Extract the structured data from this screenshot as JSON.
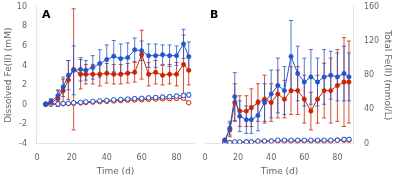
{
  "chart_data": [
    {
      "type": "line",
      "annotations": [
        "A"
      ],
      "xlabel": "Time (d)",
      "ylabel": "Dissolved Fe(II) (mM)",
      "xlim": [
        0,
        90
      ],
      "xticks": [
        0,
        20,
        40,
        60,
        80
      ],
      "ylim": [
        -4,
        10
      ],
      "yticks": [
        -4,
        -2,
        0,
        2,
        4,
        6,
        8,
        10
      ],
      "grid": false,
      "x": [
        5,
        8,
        12,
        15,
        18,
        21,
        25,
        28,
        32,
        36,
        40,
        44,
        48,
        52,
        56,
        60,
        64,
        68,
        72,
        76,
        80,
        84,
        87
      ],
      "series": [
        {
          "color": "#2255cc",
          "marker": "circle",
          "values": [
            0.05,
            0.3,
            0.9,
            1.8,
            3.0,
            3.5,
            3.6,
            3.5,
            3.8,
            4.2,
            4.6,
            4.95,
            4.7,
            4.8,
            5.6,
            5.5,
            5.0,
            5.0,
            5.1,
            5.0,
            5.0,
            6.2,
            4.9
          ],
          "errors": [
            0.05,
            0.3,
            0.6,
            1.0,
            1.5,
            2.5,
            1.2,
            1.0,
            1.2,
            1.4,
            1.5,
            1.6,
            1.5,
            1.5,
            1.2,
            1.0,
            1.2,
            1.2,
            1.0,
            1.1,
            1.0,
            1.5,
            1.5
          ]
        },
        {
          "color": "#cc2200",
          "marker": "circle",
          "values": [
            0.05,
            0.2,
            0.6,
            1.4,
            2.5,
            3.6,
            3.1,
            3.1,
            3.1,
            3.1,
            3.2,
            3.1,
            3.1,
            3.2,
            3.3,
            5.1,
            3.1,
            3.3,
            3.0,
            3.1,
            3.1,
            4.1,
            3.5
          ],
          "errors": [
            0.1,
            0.3,
            0.8,
            1.2,
            2.0,
            6.2,
            1.5,
            1.0,
            1.0,
            1.2,
            1.0,
            1.0,
            1.0,
            1.0,
            1.0,
            2.5,
            1.2,
            1.2,
            1.0,
            1.0,
            1.2,
            3.0,
            1.5
          ]
        },
        {
          "color": "#2255cc",
          "marker": "circle_open",
          "values": [
            0.02,
            0.04,
            0.06,
            0.1,
            0.12,
            0.18,
            0.22,
            0.28,
            0.33,
            0.38,
            0.42,
            0.48,
            0.52,
            0.56,
            0.6,
            0.64,
            0.68,
            0.72,
            0.76,
            0.8,
            0.86,
            0.92,
            0.98
          ],
          "errors": [
            0.01,
            0.02,
            0.03,
            0.04,
            0.05,
            0.06,
            0.08,
            0.09,
            0.1,
            0.12,
            0.13,
            0.14,
            0.15,
            0.16,
            0.17,
            0.18,
            0.18,
            0.19,
            0.19,
            0.2,
            0.2,
            0.22,
            0.22
          ]
        },
        {
          "color": "#cc2200",
          "marker": "circle_open",
          "values": [
            0.01,
            0.03,
            0.05,
            0.08,
            0.1,
            0.13,
            0.16,
            0.2,
            0.24,
            0.28,
            0.32,
            0.36,
            0.4,
            0.43,
            0.46,
            0.5,
            0.53,
            0.56,
            0.58,
            0.6,
            0.62,
            0.64,
            0.18
          ],
          "errors": [
            0.01,
            0.01,
            0.02,
            0.03,
            0.04,
            0.05,
            0.06,
            0.07,
            0.08,
            0.09,
            0.1,
            0.11,
            0.12,
            0.12,
            0.13,
            0.14,
            0.14,
            0.15,
            0.15,
            0.15,
            0.15,
            0.15,
            0.04
          ]
        }
      ]
    },
    {
      "type": "line",
      "annotations": [
        "B"
      ],
      "xlabel": "Time (d)",
      "y2label": "Total Fe(II) (mmol/L)",
      "xlim": [
        0,
        90
      ],
      "xticks": [
        0,
        20,
        40,
        60,
        80
      ],
      "y2lim": [
        0,
        160
      ],
      "y2ticks": [
        0,
        40,
        80,
        120,
        160
      ],
      "grid": false,
      "x": [
        12,
        15,
        18,
        21,
        25,
        28,
        32,
        36,
        40,
        44,
        48,
        52,
        56,
        60,
        64,
        68,
        72,
        76,
        80,
        84,
        87
      ],
      "series": [
        {
          "color": "#2255cc",
          "marker": "circle",
          "axis": "y2",
          "values": [
            4,
            18,
            55,
            32,
            28,
            28,
            33,
            48,
            58,
            68,
            62,
            102,
            82,
            72,
            78,
            72,
            78,
            80,
            78,
            82,
            78
          ],
          "errors": [
            2,
            8,
            28,
            18,
            16,
            16,
            18,
            22,
            28,
            32,
            28,
            42,
            32,
            28,
            32,
            28,
            32,
            28,
            28,
            32,
            28
          ]
        },
        {
          "color": "#cc2200",
          "marker": "circle",
          "axis": "y2",
          "values": [
            4,
            16,
            48,
            38,
            38,
            42,
            48,
            52,
            48,
            58,
            52,
            62,
            62,
            52,
            38,
            52,
            62,
            62,
            68,
            72,
            72
          ],
          "errors": [
            2,
            8,
            22,
            18,
            18,
            22,
            22,
            28,
            22,
            28,
            22,
            28,
            28,
            28,
            22,
            28,
            32,
            38,
            42,
            52,
            48
          ]
        },
        {
          "color": "#2255cc",
          "marker": "circle_open",
          "axis": "y2",
          "values": [
            1,
            1,
            2,
            2,
            2,
            2,
            3,
            3,
            3,
            4,
            4,
            4,
            4,
            4,
            4,
            4,
            4,
            4,
            4,
            5,
            5
          ],
          "errors": [
            0.5,
            0.5,
            0.8,
            0.8,
            0.8,
            0.8,
            1.0,
            1.0,
            1.0,
            1.5,
            1.5,
            1.5,
            1.5,
            1.5,
            1.5,
            1.5,
            1.5,
            1.5,
            1.5,
            2.0,
            2.0
          ]
        },
        {
          "color": "#cc2200",
          "marker": "circle_open",
          "axis": "y2",
          "values": [
            1,
            1,
            1.5,
            1.5,
            2,
            2,
            2.5,
            2.5,
            3,
            3,
            3,
            3,
            3,
            3,
            3,
            3,
            3,
            3,
            4,
            4,
            4
          ],
          "errors": [
            0.4,
            0.4,
            0.6,
            0.6,
            0.8,
            0.8,
            0.9,
            0.9,
            1.0,
            1.0,
            1.0,
            1.0,
            1.0,
            1.0,
            1.0,
            1.0,
            1.0,
            1.2,
            1.5,
            1.5,
            1.5
          ]
        }
      ]
    }
  ]
}
